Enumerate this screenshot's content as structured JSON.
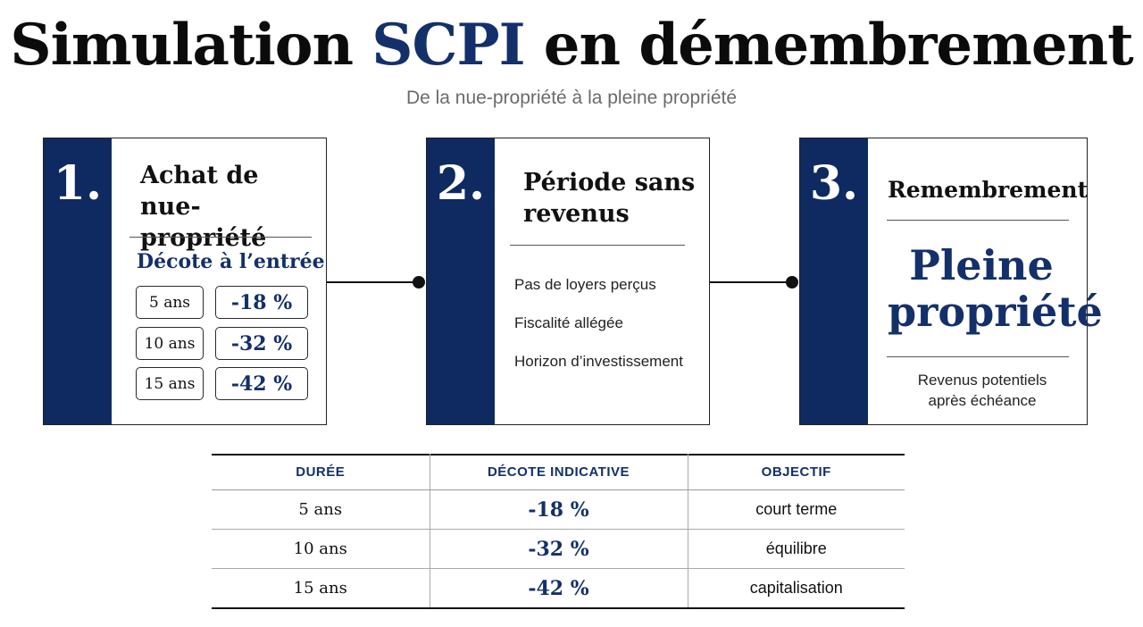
{
  "title": {
    "prefix": "Simulation",
    "accent": "SCPI",
    "suffix": "en démembrement"
  },
  "subtitle": "De la nue-propriété à la pleine propriété",
  "steps": [
    {
      "number": "1.",
      "title_line1": "Achat de",
      "title_line2": "nue-propriété",
      "discount_title": "Décote à l’entrée",
      "rows": [
        {
          "duration": "5 ans",
          "value": "-18 %"
        },
        {
          "duration": "10 ans",
          "value": "-32 %"
        },
        {
          "duration": "15 ans",
          "value": "-42 %"
        }
      ]
    },
    {
      "number": "2.",
      "title_line1": "Période sans",
      "title_line2": "revenus",
      "bullets": [
        "Pas de loyers perçus",
        "Fiscalité allégée",
        "Horizon d’investissement"
      ]
    },
    {
      "number": "3.",
      "title_line1": "Remembrement",
      "big_line1": "Pleine",
      "big_line2": "propriété",
      "note_line1": "Revenus potentiels",
      "note_line2": "après échéance"
    }
  ],
  "table": {
    "headers": [
      "DURÉE",
      "DÉCOTE INDICATIVE",
      "OBJECTIF"
    ],
    "rows": [
      [
        "5 ans",
        "-18 %",
        "court terme"
      ],
      [
        "10 ans",
        "-32 %",
        "équilibre"
      ],
      [
        "15 ans",
        "-42 %",
        "capitalisation"
      ]
    ]
  },
  "colors": {
    "navy": "#0e2a60",
    "accent": "#14306a"
  }
}
